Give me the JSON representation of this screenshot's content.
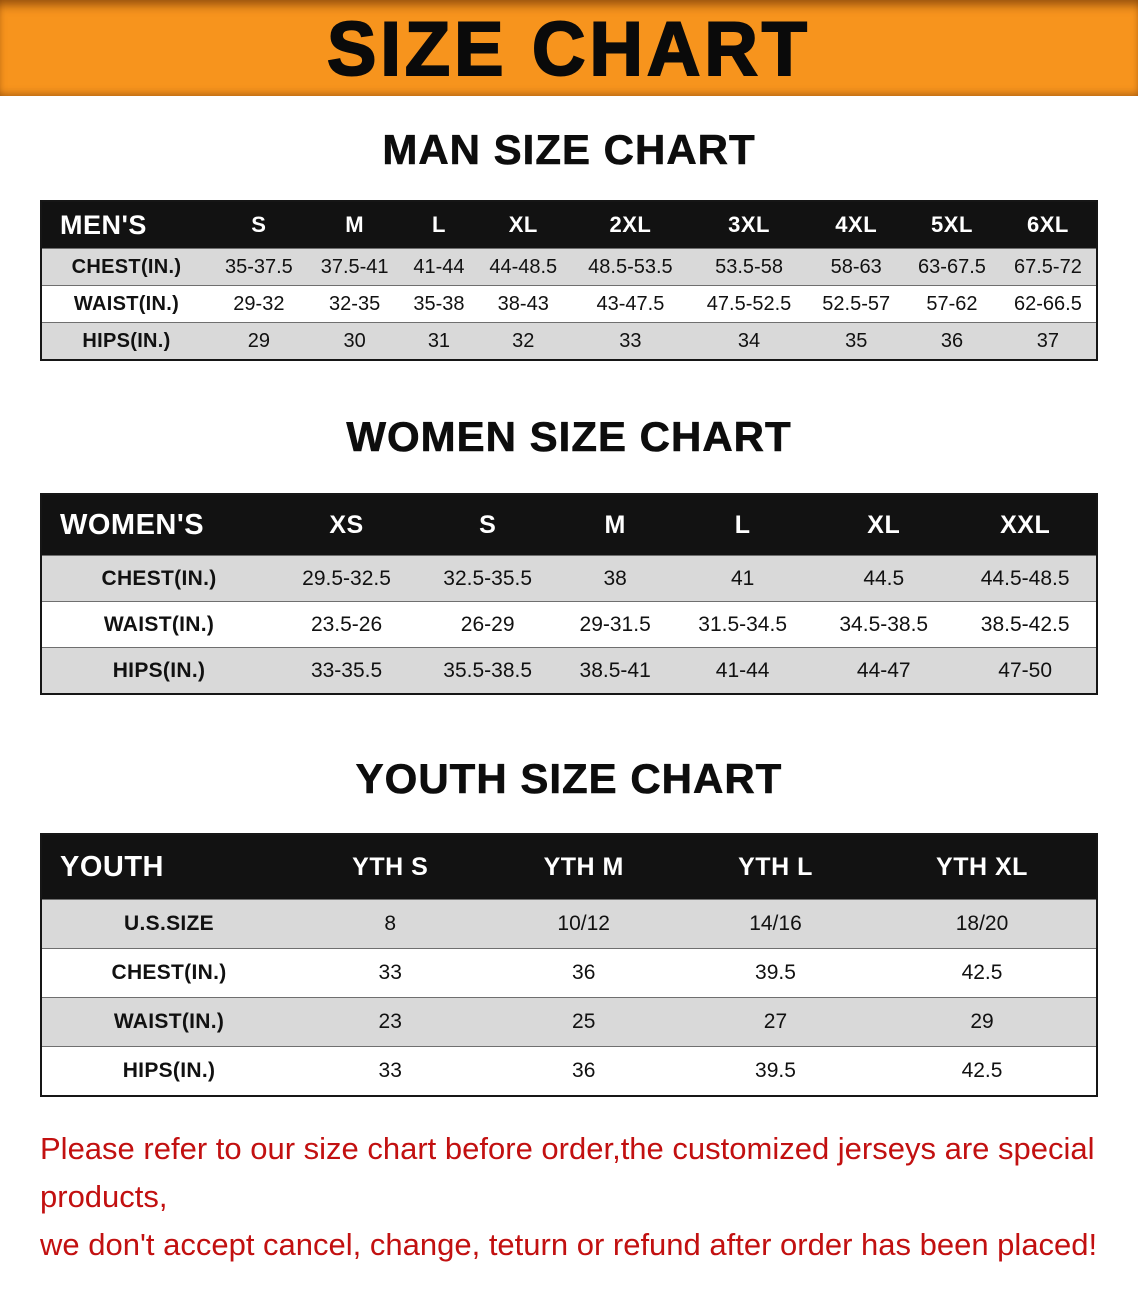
{
  "banner": {
    "title": "SIZE CHART"
  },
  "sections": [
    {
      "heading": "MAN SIZE CHART",
      "table": {
        "header": [
          "MEN'S",
          "S",
          "M",
          "L",
          "XL",
          "2XL",
          "3XL",
          "4XL",
          "5XL",
          "6XL"
        ],
        "rows": [
          [
            "CHEST(IN.)",
            "35-37.5",
            "37.5-41",
            "41-44",
            "44-48.5",
            "48.5-53.5",
            "53.5-58",
            "58-63",
            "63-67.5",
            "67.5-72"
          ],
          [
            "WAIST(IN.)",
            "29-32",
            "32-35",
            "35-38",
            "38-43",
            "43-47.5",
            "47.5-52.5",
            "52.5-57",
            "57-62",
            "62-66.5"
          ],
          [
            "HIPS(IN.)",
            "29",
            "30",
            "31",
            "32",
            "33",
            "34",
            "35",
            "36",
            "37"
          ]
        ]
      }
    },
    {
      "heading": "WOMEN SIZE CHART",
      "table": {
        "header": [
          "WOMEN'S",
          "XS",
          "S",
          "M",
          "L",
          "XL",
          "XXL"
        ],
        "rows": [
          [
            "CHEST(IN.)",
            "29.5-32.5",
            "32.5-35.5",
            "38",
            "41",
            "44.5",
            "44.5-48.5"
          ],
          [
            "WAIST(IN.)",
            "23.5-26",
            "26-29",
            "29-31.5",
            "31.5-34.5",
            "34.5-38.5",
            "38.5-42.5"
          ],
          [
            "HIPS(IN.)",
            "33-35.5",
            "35.5-38.5",
            "38.5-41",
            "41-44",
            "44-47",
            "47-50"
          ]
        ]
      }
    },
    {
      "heading": "YOUTH SIZE CHART",
      "table": {
        "header": [
          "YOUTH",
          "YTH S",
          "YTH M",
          "YTH L",
          "YTH XL"
        ],
        "rows": [
          [
            "U.S.SIZE",
            "8",
            "10/12",
            "14/16",
            "18/20"
          ],
          [
            "CHEST(IN.)",
            "33",
            "36",
            "39.5",
            "42.5"
          ],
          [
            "WAIST(IN.)",
            "23",
            "25",
            "27",
            "29"
          ],
          [
            "HIPS(IN.)",
            "33",
            "36",
            "39.5",
            "42.5"
          ]
        ]
      }
    }
  ],
  "footer": {
    "line1": "Please refer to our size chart before order,the customized jerseys are special products,",
    "line2": "we don't accept cancel, change, teturn or refund after order has been placed!"
  },
  "colors": {
    "banner-orange": "#f7941d",
    "header-bg": "#121212",
    "row-gray": "#d9d9d9",
    "warning-red": "#c21010"
  }
}
